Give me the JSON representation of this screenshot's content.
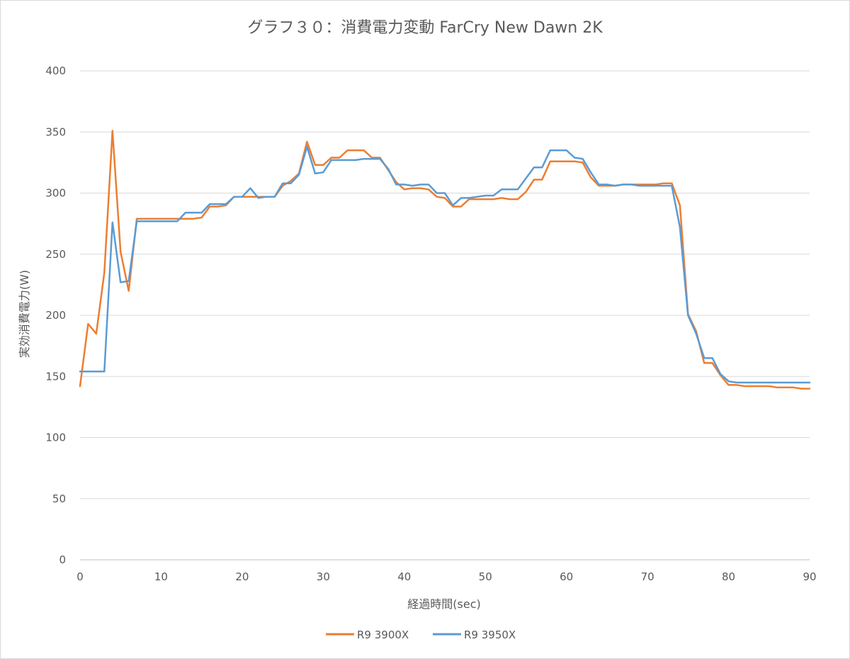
{
  "chart_data": {
    "type": "line",
    "title": "グラフ３０：消費電力変動 FarCry New Dawn 2K",
    "xlabel": "経過時間(sec)",
    "ylabel": "実効消費電力(W)",
    "xlim": [
      0,
      90
    ],
    "ylim": [
      0,
      400
    ],
    "x_ticks": [
      0,
      10,
      20,
      30,
      40,
      50,
      60,
      70,
      80,
      90
    ],
    "y_ticks": [
      0,
      50,
      100,
      150,
      200,
      250,
      300,
      350,
      400
    ],
    "grid": "horizontal",
    "legend_position": "bottom",
    "x": [
      0,
      1,
      2,
      3,
      4,
      5,
      6,
      7,
      8,
      9,
      10,
      11,
      12,
      13,
      14,
      15,
      16,
      17,
      18,
      19,
      20,
      21,
      22,
      23,
      24,
      25,
      26,
      27,
      28,
      29,
      30,
      31,
      32,
      33,
      34,
      35,
      36,
      37,
      38,
      39,
      40,
      41,
      42,
      43,
      44,
      45,
      46,
      47,
      48,
      49,
      50,
      51,
      52,
      53,
      54,
      55,
      56,
      57,
      58,
      59,
      60,
      61,
      62,
      63,
      64,
      65,
      66,
      67,
      68,
      69,
      70,
      71,
      72,
      73,
      74,
      75,
      76,
      77,
      78,
      79,
      80,
      81,
      82,
      83,
      84,
      85,
      86,
      87,
      88,
      89,
      90
    ],
    "series": [
      {
        "name": "R9 3900X",
        "color": "#ed7d31",
        "values": [
          142,
          193,
          185,
          235,
          351,
          252,
          220,
          279,
          279,
          279,
          279,
          279,
          279,
          279,
          279,
          280,
          289,
          289,
          290,
          297,
          297,
          297,
          297,
          297,
          297,
          306,
          310,
          316,
          342,
          323,
          323,
          329,
          329,
          335,
          335,
          335,
          329,
          329,
          319,
          309,
          303,
          304,
          304,
          303,
          297,
          296,
          289,
          289,
          295,
          295,
          295,
          295,
          296,
          295,
          295,
          301,
          311,
          311,
          326,
          326,
          326,
          326,
          325,
          313,
          306,
          306,
          306,
          307,
          307,
          307,
          307,
          307,
          308,
          308,
          290,
          201,
          187,
          161,
          161,
          151,
          143,
          143,
          142,
          142,
          142,
          142,
          141,
          141,
          141,
          140,
          140
        ]
      },
      {
        "name": "R9 3950X",
        "color": "#5b9bd5",
        "values": [
          154,
          154,
          154,
          154,
          276,
          227,
          228,
          277,
          277,
          277,
          277,
          277,
          277,
          284,
          284,
          284,
          291,
          291,
          291,
          297,
          297,
          304,
          296,
          297,
          297,
          308,
          308,
          315,
          338,
          316,
          317,
          327,
          327,
          327,
          327,
          328,
          328,
          328,
          320,
          307,
          307,
          306,
          307,
          307,
          300,
          300,
          290,
          296,
          296,
          297,
          298,
          298,
          303,
          303,
          303,
          312,
          321,
          321,
          335,
          335,
          335,
          329,
          328,
          317,
          307,
          307,
          306,
          307,
          307,
          306,
          306,
          306,
          306,
          306,
          272,
          200,
          185,
          165,
          165,
          152,
          146,
          145,
          145,
          145,
          145,
          145,
          145,
          145,
          145,
          145,
          145
        ]
      }
    ]
  }
}
